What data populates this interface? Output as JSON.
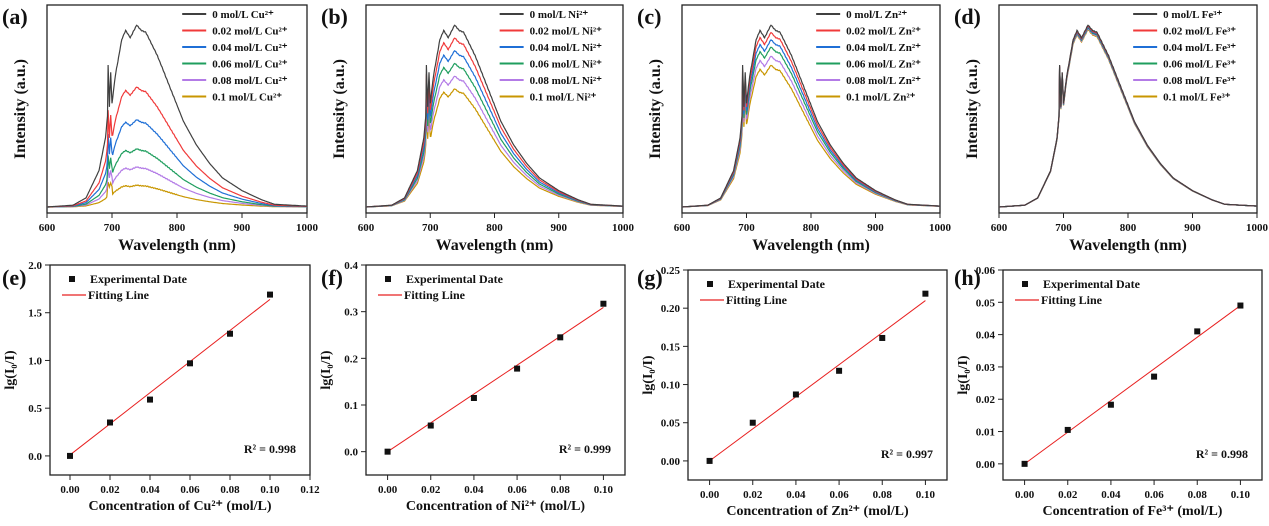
{
  "chart_data": [
    {
      "type": "line",
      "panel_label": "(a)",
      "xlabel": "Wavelength (nm)",
      "ylabel": "Intensity (a.u.)",
      "xlim": [
        600,
        1000
      ],
      "xticks": [
        600,
        700,
        800,
        900,
        1000
      ],
      "series": [
        {
          "name": "0 mol/L Cu²⁺",
          "color": "#404040",
          "relative_peak": 1.0
        },
        {
          "name": "0.02 mol/L Cu²⁺",
          "color": "#f03a3a",
          "relative_peak": 0.66
        },
        {
          "name": "0.04 mol/L Cu²⁺",
          "color": "#1f6fd6",
          "relative_peak": 0.48
        },
        {
          "name": "0.06 mol/L Cu²⁺",
          "color": "#1f9e5e",
          "relative_peak": 0.32
        },
        {
          "name": "0.08 mol/L Cu²⁺",
          "color": "#b37be6",
          "relative_peak": 0.22
        },
        {
          "name": "0.1 mol/L Cu²⁺",
          "color": "#c89600",
          "relative_peak": 0.12
        }
      ]
    },
    {
      "type": "line",
      "panel_label": "(b)",
      "xlabel": "Wavelength (nm)",
      "ylabel": "Intensity (a.u.)",
      "xlim": [
        600,
        1000
      ],
      "xticks": [
        600,
        700,
        800,
        900,
        1000
      ],
      "series": [
        {
          "name": "0 mol/L Ni²⁺",
          "color": "#404040",
          "relative_peak": 1.0
        },
        {
          "name": "0.02 mol/L Ni²⁺",
          "color": "#f03a3a",
          "relative_peak": 0.93
        },
        {
          "name": "0.04 mol/L Ni²⁺",
          "color": "#1f6fd6",
          "relative_peak": 0.86
        },
        {
          "name": "0.06 mol/L Ni²⁺",
          "color": "#1f9e5e",
          "relative_peak": 0.79
        },
        {
          "name": "0.08 mol/L Ni²⁺",
          "color": "#b37be6",
          "relative_peak": 0.72
        },
        {
          "name": "0.1 mol/L Ni²⁺",
          "color": "#c89600",
          "relative_peak": 0.65
        }
      ]
    },
    {
      "type": "line",
      "panel_label": "(c)",
      "xlabel": "Wavelength (nm)",
      "ylabel": "Intensity (a.u.)",
      "xlim": [
        600,
        1000
      ],
      "xticks": [
        600,
        700,
        800,
        900,
        1000
      ],
      "series": [
        {
          "name": "0 mol/L Zn²⁺",
          "color": "#404040",
          "relative_peak": 1.0
        },
        {
          "name": "0.02 mol/L Zn²⁺",
          "color": "#f03a3a",
          "relative_peak": 0.96
        },
        {
          "name": "0.04 mol/L Zn²⁺",
          "color": "#1f6fd6",
          "relative_peak": 0.92
        },
        {
          "name": "0.06 mol/L Zn²⁺",
          "color": "#1f9e5e",
          "relative_peak": 0.88
        },
        {
          "name": "0.08 mol/L Zn²⁺",
          "color": "#b37be6",
          "relative_peak": 0.83
        },
        {
          "name": "0.1 mol/L Zn²⁺",
          "color": "#c89600",
          "relative_peak": 0.78
        }
      ]
    },
    {
      "type": "line",
      "panel_label": "(d)",
      "xlabel": "Wavelength (nm)",
      "ylabel": "Intensity (a.u.)",
      "xlim": [
        600,
        1000
      ],
      "xticks": [
        600,
        700,
        800,
        900,
        1000
      ],
      "series": [
        {
          "name": "0 mol/L Fe³⁺",
          "color": "#404040",
          "relative_peak": 1.0
        },
        {
          "name": "0.02 mol/L Fe³⁺",
          "color": "#f03a3a",
          "relative_peak": 0.995
        },
        {
          "name": "0.04 mol/L Fe³⁺",
          "color": "#1f6fd6",
          "relative_peak": 0.99
        },
        {
          "name": "0.06 mol/L Fe³⁺",
          "color": "#1f9e5e",
          "relative_peak": 0.985
        },
        {
          "name": "0.08 mol/L Fe³⁺",
          "color": "#b37be6",
          "relative_peak": 0.98
        },
        {
          "name": "0.1 mol/L Fe³⁺",
          "color": "#c89600",
          "relative_peak": 0.975
        }
      ]
    },
    {
      "type": "scatter",
      "panel_label": "(e)",
      "xlabel": "Concentration of Cu²⁺ (mol/L)",
      "ylabel": "lg(I₀/I)",
      "xlim": [
        -0.01,
        0.12
      ],
      "ylim": [
        -0.2,
        2.0
      ],
      "xticks": [
        0,
        0.02,
        0.04,
        0.06,
        0.08,
        0.1,
        0.12
      ],
      "xtick_labels": [
        "0.00",
        "0.02",
        "0.04",
        "0.06",
        "0.08",
        "0.10",
        "0.12"
      ],
      "yticks": [
        0,
        0.5,
        1.0,
        1.5,
        2.0
      ],
      "ytick_labels": [
        "0.0",
        "0.5",
        "1.0",
        "1.5",
        "2.0"
      ],
      "x": [
        0,
        0.02,
        0.04,
        0.06,
        0.08,
        0.1
      ],
      "y": [
        0,
        0.35,
        0.59,
        0.97,
        1.28,
        1.69
      ],
      "fit": {
        "x": [
          0,
          0.1
        ],
        "y": [
          0.01,
          1.64
        ]
      },
      "legend": [
        "Experimental Date",
        "Fitting Line"
      ],
      "annotation": "R² = 0.998",
      "fit_color": "#e82020"
    },
    {
      "type": "scatter",
      "panel_label": "(f)",
      "xlabel": "Concentration of Ni²⁺ (mol/L)",
      "ylabel": "lg(I₀/I)",
      "xlim": [
        -0.01,
        0.11
      ],
      "ylim": [
        -0.05,
        0.4
      ],
      "xticks": [
        0,
        0.02,
        0.04,
        0.06,
        0.08,
        0.1
      ],
      "xtick_labels": [
        "0.00",
        "0.02",
        "0.04",
        "0.06",
        "0.08",
        "0.10"
      ],
      "yticks": [
        0,
        0.1,
        0.2,
        0.3,
        0.4
      ],
      "ytick_labels": [
        "0.0",
        "0.1",
        "0.2",
        "0.3",
        "0.4"
      ],
      "x": [
        0,
        0.02,
        0.04,
        0.06,
        0.08,
        0.1
      ],
      "y": [
        0,
        0.056,
        0.115,
        0.178,
        0.245,
        0.317
      ],
      "fit": {
        "x": [
          0,
          0.1
        ],
        "y": [
          0.0,
          0.309
        ]
      },
      "legend": [
        "Experimental Date",
        "Fitting Line"
      ],
      "annotation": "R² = 0.999",
      "fit_color": "#e82020"
    },
    {
      "type": "scatter",
      "panel_label": "(g)",
      "xlabel": "Concentration of Zn²⁺ (mol/L)",
      "ylabel": "lg(I₀/I)",
      "xlim": [
        -0.01,
        0.11
      ],
      "ylim": [
        -0.025,
        0.25
      ],
      "xticks": [
        0,
        0.02,
        0.04,
        0.06,
        0.08,
        0.1
      ],
      "xtick_labels": [
        "0.00",
        "0.02",
        "0.04",
        "0.06",
        "0.08",
        "0.10"
      ],
      "yticks": [
        0,
        0.05,
        0.1,
        0.15,
        0.2,
        0.25
      ],
      "ytick_labels": [
        "0.00",
        "0.05",
        "0.10",
        "0.15",
        "0.20",
        "0.25"
      ],
      "x": [
        0,
        0.02,
        0.04,
        0.06,
        0.08,
        0.1
      ],
      "y": [
        0,
        0.05,
        0.087,
        0.118,
        0.161,
        0.219
      ],
      "fit": {
        "x": [
          0,
          0.1
        ],
        "y": [
          0.0,
          0.21
        ]
      },
      "legend": [
        "Experimental Date",
        "Fitting Line"
      ],
      "annotation": "R² = 0.997",
      "fit_color": "#e82020"
    },
    {
      "type": "scatter",
      "panel_label": "(h)",
      "xlabel": "Concentration of Fe³⁺ (mol/L)",
      "ylabel": "lg(I₀/I)",
      "xlim": [
        -0.01,
        0.11
      ],
      "ylim": [
        -0.005,
        0.06
      ],
      "xticks": [
        0,
        0.02,
        0.04,
        0.06,
        0.08,
        0.1
      ],
      "xtick_labels": [
        "0.00",
        "0.02",
        "0.04",
        "0.06",
        "0.08",
        "0.10"
      ],
      "yticks": [
        0,
        0.01,
        0.02,
        0.03,
        0.04,
        0.05,
        0.06
      ],
      "ytick_labels": [
        "0.00",
        "0.01",
        "0.02",
        "0.03",
        "0.04",
        "0.05",
        "0.06"
      ],
      "x": [
        0,
        0.02,
        0.04,
        0.06,
        0.08,
        0.1
      ],
      "y": [
        0,
        0.0105,
        0.0183,
        0.027,
        0.041,
        0.049
      ],
      "fit": {
        "x": [
          0,
          0.1
        ],
        "y": [
          0.0,
          0.049
        ]
      },
      "legend": [
        "Experimental Date",
        "Fitting Line"
      ],
      "annotation": "R² = 0.998",
      "fit_color": "#e82020"
    }
  ]
}
